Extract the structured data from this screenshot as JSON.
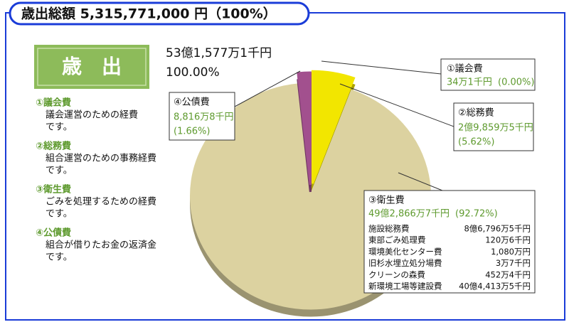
{
  "title": "歳出総額 5,315,771,000 円（100%）",
  "heading": "歳　出",
  "descriptions": [
    [
      "議会運営のための経費",
      "です。"
    ],
    [
      "組合運営のための事務経費",
      "です。"
    ],
    [
      "ごみを処理するための経費",
      "です。"
    ],
    [
      "組合が借りたお金の返済金",
      "です。"
    ]
  ],
  "chart_data": {
    "type": "pie",
    "total_amount": "53億1,577万1千円",
    "total_percent": "100.00%",
    "categories": [
      "①議会費",
      "②総務費",
      "③衛生費",
      "④公債費"
    ],
    "values": [
      0.0,
      5.62,
      92.72,
      1.66
    ],
    "value_labels": [
      "(0.00%)",
      "(5.62%)",
      "(92.72%)",
      "(1.66%)"
    ],
    "amounts": [
      "34万1千円",
      "2億9,859万5千円",
      "49億2,866万7千円",
      "8,816万8千円"
    ],
    "colors": [
      "#d41c1c",
      "#f2e600",
      "#dcd2a0",
      "#a2508e"
    ],
    "breakdown": [
      [
        "施設総務費",
        "8億6,796万5千円"
      ],
      [
        "東部ごみ処理費",
        "120万6千円"
      ],
      [
        "環境美化センター費",
        "1,080万円"
      ],
      [
        "旧杉水埋立処分場費",
        "3万7千円"
      ],
      [
        "クリーンの森費",
        "452万4千円"
      ],
      [
        "新環境工場等建設費",
        "40億4,413万5千円"
      ]
    ]
  }
}
